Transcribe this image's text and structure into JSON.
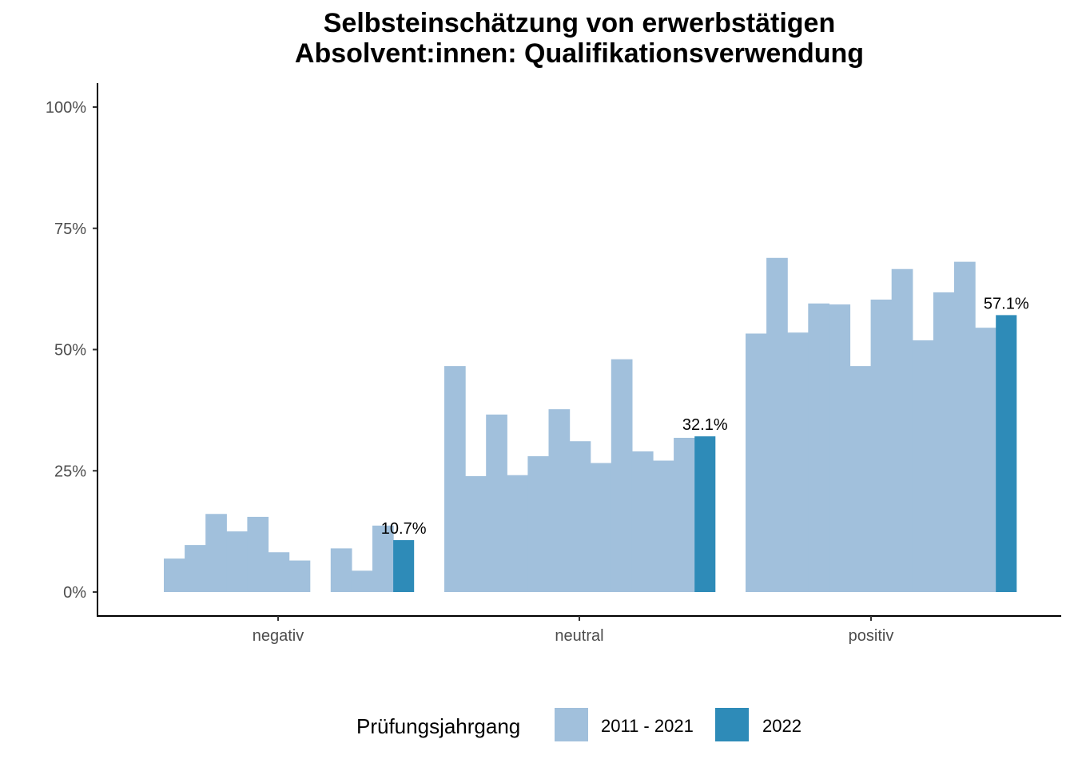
{
  "chart_data": {
    "type": "bar",
    "title_lines": [
      "Selbsteinschätzung von erwerbstätigen",
      "Absolvent:innen: Qualifikationsverwendung"
    ],
    "categories": [
      "negativ",
      "neutral",
      "positiv"
    ],
    "ylim": [
      0,
      100
    ],
    "yticks": [
      0,
      25,
      50,
      75,
      100
    ],
    "ytick_labels": [
      "0%",
      "25%",
      "50%",
      "75%",
      "100%"
    ],
    "xlabel": "",
    "ylabel": "",
    "legend": {
      "title": "Prüfungsjahrgang",
      "position": "bottom",
      "entries": [
        {
          "label": "2011 - 2021",
          "color": "#a1c0dc"
        },
        {
          "label": "2022",
          "color": "#2e8bb8"
        }
      ]
    },
    "series": [
      {
        "name": "2011 - 2021",
        "color": "#a1c0dc",
        "groups": [
          [
            6.9,
            9.7,
            16.1,
            12.5,
            15.5,
            8.2,
            6.5,
            null,
            9.0,
            4.4,
            13.7
          ],
          [
            46.6,
            23.9,
            36.6,
            24.1,
            28.0,
            37.7,
            31.1,
            26.6,
            48.0,
            29.0,
            27.1,
            31.8
          ],
          [
            53.3,
            68.9,
            53.5,
            59.5,
            59.3,
            46.6,
            60.3,
            66.6,
            51.9,
            61.8,
            68.1,
            54.5
          ]
        ]
      },
      {
        "name": "2022",
        "color": "#2e8bb8",
        "values": [
          10.7,
          32.1,
          57.1
        ],
        "labels": [
          "10.7%",
          "32.1%",
          "57.1%"
        ]
      }
    ]
  }
}
